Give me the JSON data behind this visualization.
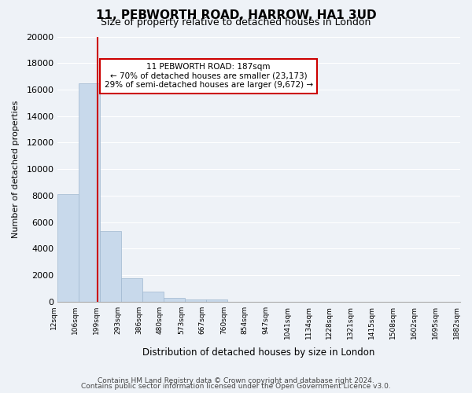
{
  "title": "11, PEBWORTH ROAD, HARROW, HA1 3UD",
  "subtitle": "Size of property relative to detached houses in London",
  "xlabel": "Distribution of detached houses by size in London",
  "ylabel": "Number of detached properties",
  "bar_values": [
    8100,
    16500,
    5300,
    1800,
    750,
    300,
    200,
    150,
    0,
    0,
    0,
    0,
    0,
    0,
    0,
    0,
    0,
    0,
    0
  ],
  "bin_labels": [
    "12sqm",
    "106sqm",
    "199sqm",
    "293sqm",
    "386sqm",
    "480sqm",
    "573sqm",
    "667sqm",
    "760sqm",
    "854sqm",
    "947sqm",
    "1041sqm",
    "1134sqm",
    "1228sqm",
    "1321sqm",
    "1415sqm",
    "1508sqm",
    "1602sqm",
    "1695sqm"
  ],
  "bar_color": "#c8d9eb",
  "bar_edge_color": "#a0b8d0",
  "property_line_x": 1.87,
  "annotation_title": "11 PEBWORTH ROAD: 187sqm",
  "annotation_line1": "← 70% of detached houses are smaller (23,173)",
  "annotation_line2": "29% of semi-detached houses are larger (9,672) →",
  "vline_color": "#cc0000",
  "annotation_box_color": "#ffffff",
  "annotation_box_edge": "#cc0000",
  "ylim": [
    0,
    20000
  ],
  "yticks": [
    0,
    2000,
    4000,
    6000,
    8000,
    10000,
    12000,
    14000,
    16000,
    18000,
    20000
  ],
  "footer_line1": "Contains HM Land Registry data © Crown copyright and database right 2024.",
  "footer_line2": "Contains public sector information licensed under the Open Government Licence v3.0.",
  "bg_color": "#eef2f7",
  "plot_bg_color": "#eef2f7",
  "last_xtick_label": "1882sqm"
}
